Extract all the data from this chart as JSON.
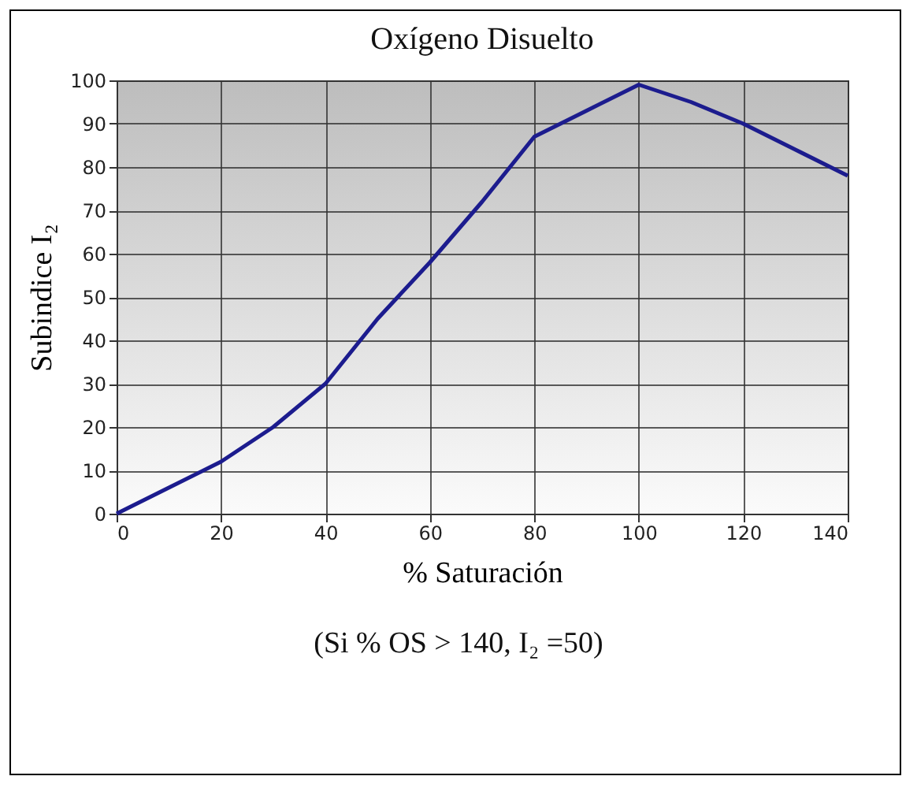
{
  "chart_data": {
    "type": "line",
    "title": "Oxígeno Disuelto",
    "xlabel": "% Saturación",
    "ylabel": "Subindice I₂",
    "annotations": [
      "(Si % OS > 140, I₂ =50)"
    ],
    "x": [
      0,
      10,
      20,
      30,
      40,
      50,
      60,
      70,
      80,
      90,
      100,
      110,
      120,
      130,
      140
    ],
    "series": [
      {
        "color": "#1c1c8e",
        "values": [
          0,
          6,
          12,
          20,
          30,
          45,
          58,
          72,
          87,
          93,
          99,
          95,
          90,
          84,
          78
        ]
      }
    ],
    "xlim": [
      0,
      140
    ],
    "xticks": [
      0,
      20,
      40,
      60,
      80,
      100,
      120,
      140
    ],
    "ylim": [
      0,
      100
    ],
    "yticks": [
      0,
      10,
      20,
      30,
      40,
      50,
      60,
      70,
      80,
      90,
      100
    ],
    "grid": true,
    "marker": "none",
    "line_style": "solid",
    "legend": false
  }
}
